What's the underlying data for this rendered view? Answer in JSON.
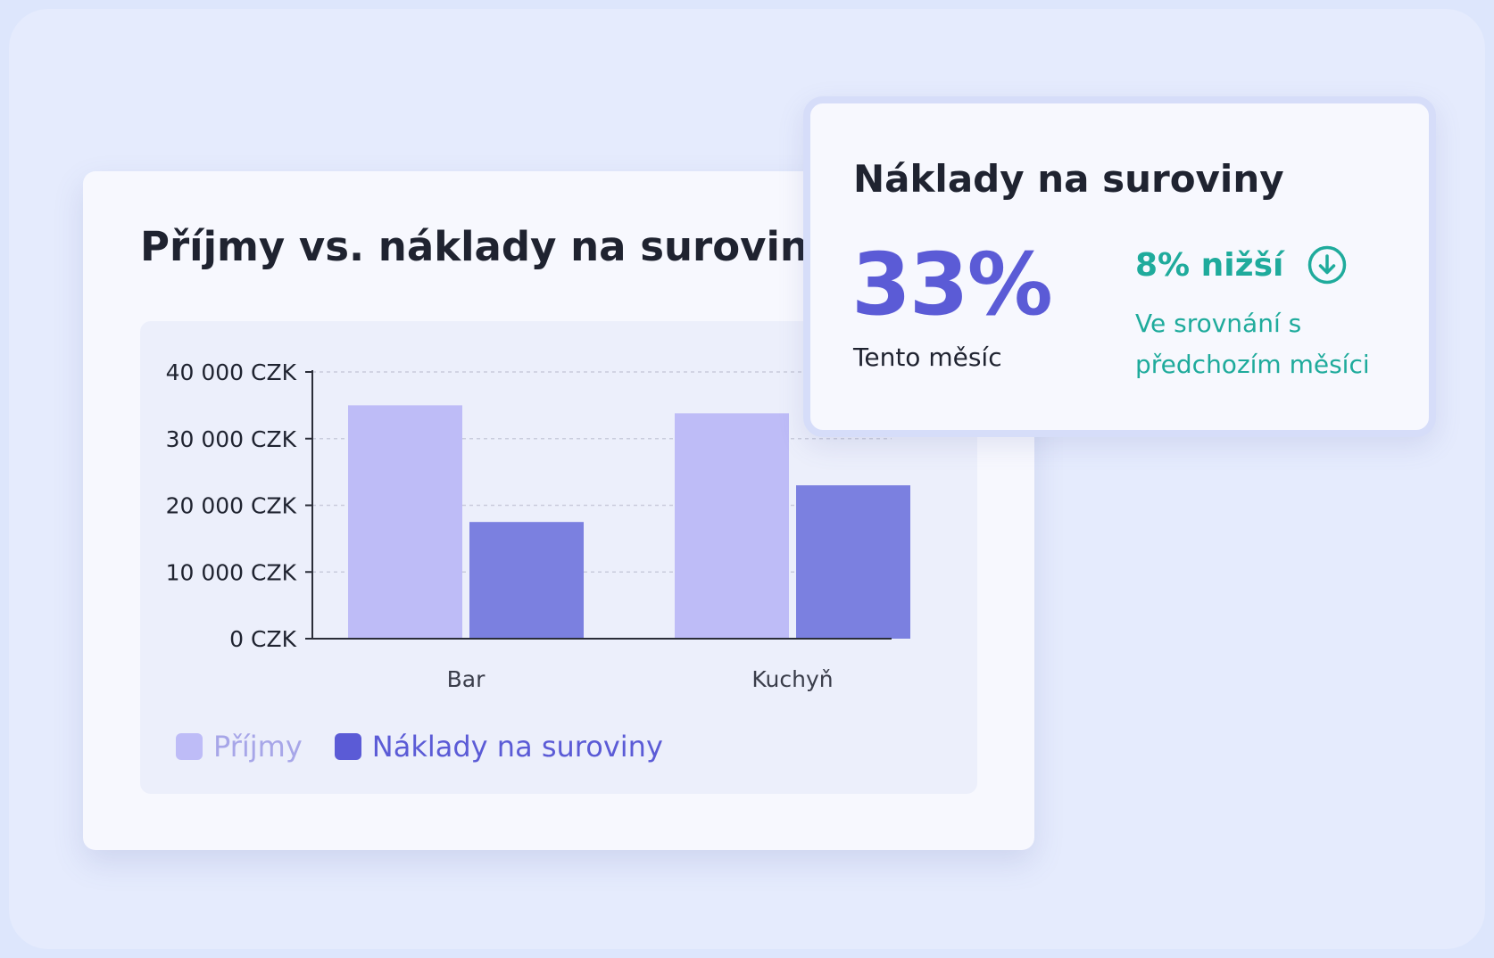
{
  "chart_card": {
    "title": "Příjmy vs. náklady na suroviny"
  },
  "kpi_card": {
    "title": "Náklady na suroviny",
    "value": "33%",
    "caption": "Tento měsíc",
    "change": "8% nižší",
    "change_icon": "arrow-down-circle-icon",
    "comparison": "Ve srovnání s předchozím měsíci"
  },
  "colors": {
    "revenue": "#bebcf7",
    "costs": "#7b80e0",
    "accent": "#5b5bd6",
    "positive": "#1fab9c",
    "legend_revenue_text": "#a7a6e8",
    "legend_costs_text": "#5b5bd6"
  },
  "chart_data": {
    "type": "bar",
    "title": "Příjmy vs. náklady na suroviny",
    "categories": [
      "Bar",
      "Kuchyň"
    ],
    "series": [
      {
        "name": "Příjmy",
        "values": [
          35000,
          33800
        ]
      },
      {
        "name": "Náklady na suroviny",
        "values": [
          17500,
          23000
        ]
      }
    ],
    "ylim": [
      0,
      40000
    ],
    "yticks": [
      0,
      10000,
      20000,
      30000,
      40000
    ],
    "ytick_labels": [
      "0 CZK",
      "10 000 CZK",
      "20 000 CZK",
      "30 000 CZK",
      "40 000 CZK"
    ],
    "xlabel": "",
    "ylabel": "",
    "grid": "horizontal dashed",
    "legend": "bottom-left"
  }
}
